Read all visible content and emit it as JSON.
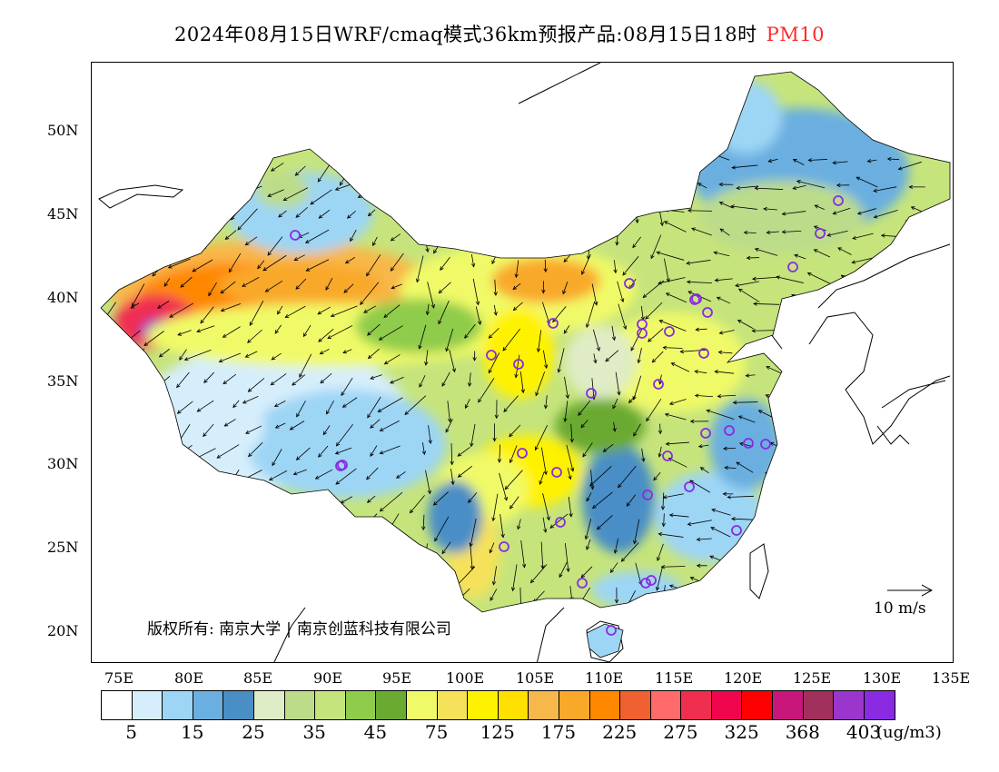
{
  "title": {
    "main": "2024年08月15日WRF/cmaq模式36km预报产品:08月15日18时",
    "pollutant": "PM10"
  },
  "axes": {
    "lat_labels": [
      "50N",
      "45N",
      "40N",
      "35N",
      "30N",
      "25N",
      "20N"
    ],
    "lon_labels": [
      "75E",
      "80E",
      "85E",
      "90E",
      "95E",
      "100E",
      "105E",
      "110E",
      "115E",
      "120E",
      "125E",
      "130E",
      "135E"
    ]
  },
  "copyright": {
    "prefix": "版权所有:",
    "org1": "南京大学",
    "org2": "南京创蓝科技有限公司"
  },
  "wind_scale": {
    "label": "10 m/s"
  },
  "colorbar": {
    "colors": [
      "#ffffff",
      "#d6eefb",
      "#9dd5f5",
      "#6aafe0",
      "#4a8ec6",
      "#dfecc5",
      "#bcdc8a",
      "#c6e47c",
      "#8fcc4c",
      "#6aaa33",
      "#f0fa68",
      "#f5e25a",
      "#fff200",
      "#ffe000",
      "#f8b74a",
      "#f9a92a",
      "#ff8800",
      "#f06030",
      "#ff6a6a",
      "#f02e50",
      "#f0064c",
      "#ff0000",
      "#c8177a",
      "#a2305c",
      "#9a36cc",
      "#8a2be2"
    ],
    "labels": [
      "5",
      "15",
      "25",
      "35",
      "45",
      "75",
      "125",
      "175",
      "225",
      "275",
      "325",
      "368",
      "403"
    ],
    "unit": "(ug/m3)"
  },
  "stations": {
    "marker": "purple-circle",
    "count": 40
  }
}
